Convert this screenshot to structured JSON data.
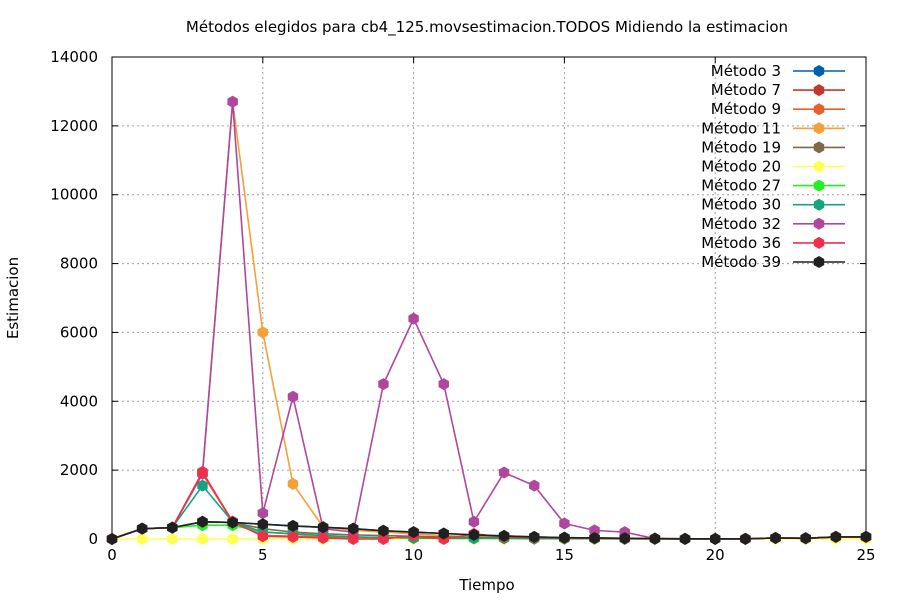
{
  "chart_data": {
    "type": "line",
    "title": "Métodos elegidos para cb4_125.movsestimacion.TODOS Midiendo la estimacion",
    "xlabel": "Tiempo",
    "ylabel": "Estimacion",
    "xlim": [
      0,
      25
    ],
    "ylim": [
      0,
      14000
    ],
    "xticks": [
      0,
      5,
      10,
      15,
      20,
      25
    ],
    "yticks": [
      0,
      2000,
      4000,
      6000,
      8000,
      10000,
      12000,
      14000
    ],
    "grid": true,
    "legend_position": "top-right",
    "x": [
      0,
      1,
      2,
      3,
      4,
      5,
      6,
      7,
      8,
      9,
      10,
      11,
      12,
      13,
      14,
      15,
      16,
      17,
      18,
      19,
      20,
      21,
      22,
      23,
      24,
      25
    ],
    "series": [
      {
        "name": "Método 3",
        "color": "#0060ad",
        "values": [
          0,
          300,
          330,
          500,
          480,
          430,
          380,
          340,
          300,
          240,
          200,
          160,
          120,
          90,
          60,
          40,
          30,
          20,
          10,
          5,
          5,
          3,
          30,
          20,
          60,
          60
        ]
      },
      {
        "name": "Método 7",
        "color": "#c0392b",
        "values": [
          0,
          300,
          330,
          1900,
          500,
          100,
          80,
          60,
          40,
          30,
          20,
          10,
          60,
          60,
          40,
          30,
          20,
          10,
          10,
          5,
          5,
          3,
          30,
          20,
          60,
          60
        ]
      },
      {
        "name": "Método 9",
        "color": "#e8602c",
        "values": [
          0,
          300,
          330,
          1900,
          500,
          100,
          80,
          60,
          40,
          30,
          20,
          10,
          60,
          60,
          40,
          30,
          20,
          10,
          10,
          5,
          5,
          3,
          30,
          20,
          60,
          60
        ]
      },
      {
        "name": "Método 11",
        "color": "#f5a03a",
        "values": [
          0,
          300,
          330,
          1900,
          12700,
          6000,
          1600,
          350,
          250,
          200,
          150,
          100,
          60,
          60,
          40,
          30,
          20,
          10,
          10,
          5,
          5,
          3,
          30,
          20,
          60,
          60
        ]
      },
      {
        "name": "Método 19",
        "color": "#7f6a4a",
        "values": [
          0,
          300,
          330,
          500,
          480,
          300,
          200,
          150,
          120,
          100,
          80,
          60,
          50,
          40,
          30,
          20,
          15,
          10,
          10,
          5,
          5,
          3,
          30,
          20,
          60,
          60
        ]
      },
      {
        "name": "Método 20",
        "color": "#ffff55",
        "values": [
          0,
          0,
          0,
          0,
          0,
          0,
          0,
          0,
          0,
          0,
          0,
          0,
          0,
          0,
          0,
          0,
          0,
          0,
          0,
          0,
          0,
          0,
          0,
          0,
          0,
          0
        ]
      },
      {
        "name": "Método 27",
        "color": "#22ee22",
        "values": [
          0,
          300,
          330,
          400,
          400,
          200,
          150,
          100,
          60,
          40,
          30,
          20,
          20,
          20,
          10,
          10,
          10,
          5,
          5,
          3,
          3,
          3,
          30,
          20,
          60,
          60
        ]
      },
      {
        "name": "Método 30",
        "color": "#17a37f",
        "values": [
          0,
          300,
          330,
          1550,
          500,
          200,
          150,
          100,
          60,
          40,
          30,
          20,
          20,
          20,
          10,
          10,
          10,
          5,
          5,
          3,
          3,
          3,
          30,
          20,
          60,
          60
        ]
      },
      {
        "name": "Método 32",
        "color": "#b0479e",
        "values": [
          0,
          300,
          330,
          1900,
          12700,
          750,
          4130,
          300,
          200,
          4500,
          6400,
          4500,
          500,
          1930,
          1550,
          450,
          250,
          200,
          10,
          5,
          5,
          3,
          30,
          20,
          60,
          60
        ]
      },
      {
        "name": "Método 36",
        "color": "#f0304a",
        "values": [
          0,
          300,
          330,
          1950,
          500,
          80,
          60,
          30,
          -20,
          -30,
          100,
          -40,
          150,
          60,
          40,
          30,
          20,
          10,
          10,
          5,
          5,
          3,
          30,
          20,
          60,
          60
        ]
      },
      {
        "name": "Método 39",
        "color": "#202020",
        "values": [
          0,
          300,
          330,
          500,
          480,
          430,
          380,
          340,
          300,
          240,
          200,
          160,
          120,
          90,
          60,
          40,
          30,
          20,
          10,
          5,
          5,
          3,
          30,
          20,
          60,
          60
        ]
      }
    ]
  }
}
